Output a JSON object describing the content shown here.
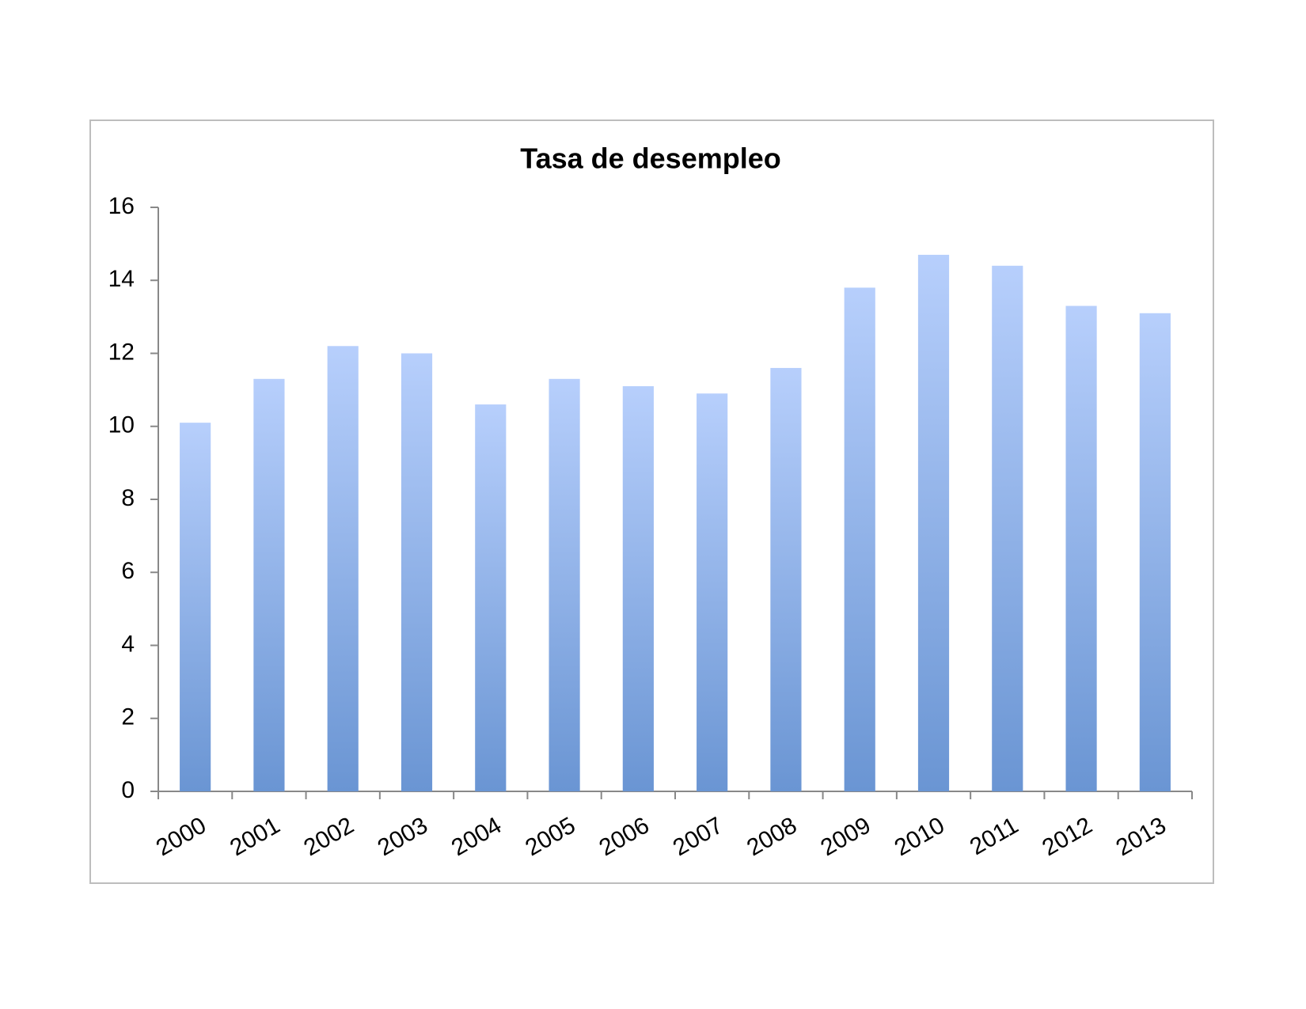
{
  "chart_data": {
    "type": "bar",
    "title": "Tasa de desempleo",
    "categories": [
      "2000",
      "2001",
      "2002",
      "2003",
      "2004",
      "2005",
      "2006",
      "2007",
      "2008",
      "2009",
      "2010",
      "2011",
      "2012",
      "2013"
    ],
    "values": [
      10.1,
      11.3,
      12.2,
      12.0,
      10.6,
      11.3,
      11.1,
      10.9,
      11.6,
      13.8,
      14.7,
      14.4,
      13.3,
      13.1
    ],
    "color": "#8aaee6",
    "ylim": [
      0,
      16
    ],
    "yticks": [
      0,
      2,
      4,
      6,
      8,
      10,
      12,
      14,
      16
    ],
    "grid": false
  }
}
